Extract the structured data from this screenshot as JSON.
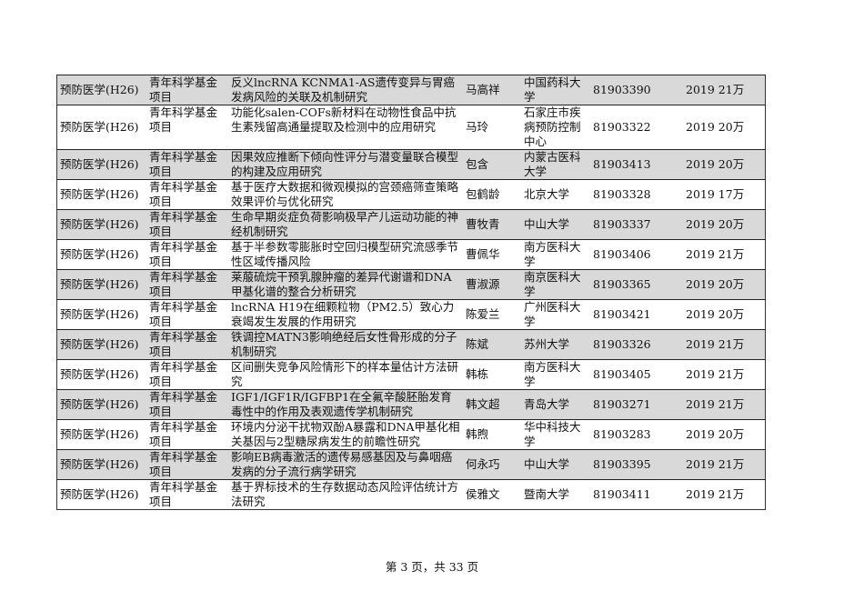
{
  "rows": [
    {
      "discipline": "预防医学(H26)",
      "type": "青年科学基金项目",
      "title": "反义lncRNA KCNMA1-AS遗传变异与胃癌发病风险的关联及机制研究",
      "leader": "马高祥",
      "institution": "中国药科大学",
      "grant_no": "81903390",
      "year_amount": "2019 21万"
    },
    {
      "discipline": "预防医学(H26)",
      "type": "青年科学基金项目",
      "title": "功能化salen-COFs新材料在动物性食品中抗生素残留高通量提取及检测中的应用研究",
      "leader": "马玲",
      "institution": "石家庄市疾病预防控制中心",
      "grant_no": "81903322",
      "year_amount": "2019 20万"
    },
    {
      "discipline": "预防医学(H26)",
      "type": "青年科学基金项目",
      "title": "因果效应推断下倾向性评分与潜变量联合模型的构建及应用研究",
      "leader": "包含",
      "institution": "内蒙古医科大学",
      "grant_no": "81903413",
      "year_amount": "2019 20万"
    },
    {
      "discipline": "预防医学(H26)",
      "type": "青年科学基金项目",
      "title": "基于医疗大数据和微观模拟的宫颈癌筛查策略效果评价与优化研究",
      "leader": "包鹤龄",
      "institution": "北京大学",
      "grant_no": "81903328",
      "year_amount": "2019 17万"
    },
    {
      "discipline": "预防医学(H26)",
      "type": "青年科学基金项目",
      "title": "生命早期炎症负荷影响极早产儿运动功能的神经机制研究",
      "leader": "曹牧青",
      "institution": "中山大学",
      "grant_no": "81903337",
      "year_amount": "2019 20万"
    },
    {
      "discipline": "预防医学(H26)",
      "type": "青年科学基金项目",
      "title": "基于半参数零膨胀时空回归模型研究流感季节性区域传播风险",
      "leader": "曹佩华",
      "institution": "南方医科大学",
      "grant_no": "81903406",
      "year_amount": "2019 21万"
    },
    {
      "discipline": "预防医学(H26)",
      "type": "青年科学基金项目",
      "title": "莱菔硫烷干预乳腺肿瘤的差异代谢谱和DNA甲基化谱的整合分析研究",
      "leader": "曹淑源",
      "institution": "南京医科大学",
      "grant_no": "81903365",
      "year_amount": "2019 20万"
    },
    {
      "discipline": "预防医学(H26)",
      "type": "青年科学基金项目",
      "title": "lncRNA H19在细颗粒物（PM2.5）致心力衰竭发生发展的作用研究",
      "leader": "陈爱兰",
      "institution": "广州医科大学",
      "grant_no": "81903421",
      "year_amount": "2019 20万"
    },
    {
      "discipline": "预防医学(H26)",
      "type": "青年科学基金项目",
      "title": "铁调控MATN3影响绝经后女性骨形成的分子机制研究",
      "leader": "陈斌",
      "institution": "苏州大学",
      "grant_no": "81903326",
      "year_amount": "2019 21万"
    },
    {
      "discipline": "预防医学(H26)",
      "type": "青年科学基金项目",
      "title": "区间删失竞争风险情形下的样本量估计方法研究",
      "leader": "韩栋",
      "institution": "南方医科大学",
      "grant_no": "81903405",
      "year_amount": "2019 21万"
    },
    {
      "discipline": "预防医学(H26)",
      "type": "青年科学基金项目",
      "title": "IGF1/IGF1R/IGFBP1在全氟辛酸胚胎发育毒性中的作用及表观遗传学机制研究",
      "leader": "韩文超",
      "institution": "青岛大学",
      "grant_no": "81903271",
      "year_amount": "2019 21万"
    },
    {
      "discipline": "预防医学(H26)",
      "type": "青年科学基金项目",
      "title": "环境内分泌干扰物双酚A暴露和DNA甲基化相关基因与2型糖尿病发生的前瞻性研究",
      "leader": "韩煦",
      "institution": "华中科技大学",
      "grant_no": "81903283",
      "year_amount": "2019 20万"
    },
    {
      "discipline": "预防医学(H26)",
      "type": "青年科学基金项目",
      "title": "影响EB病毒激活的遗传易感基因及与鼻咽癌发病的分子流行病学研究",
      "leader": "何永巧",
      "institution": "中山大学",
      "grant_no": "81903395",
      "year_amount": "2019 21万"
    },
    {
      "discipline": "预防医学(H26)",
      "type": "青年科学基金项目",
      "title": "基于界标技术的生存数据动态风险评估统计方法研究",
      "leader": "侯雅文",
      "institution": "暨南大学",
      "grant_no": "81903411",
      "year_amount": "2019 21万"
    }
  ],
  "footer": "第 3 页，共 33 页"
}
